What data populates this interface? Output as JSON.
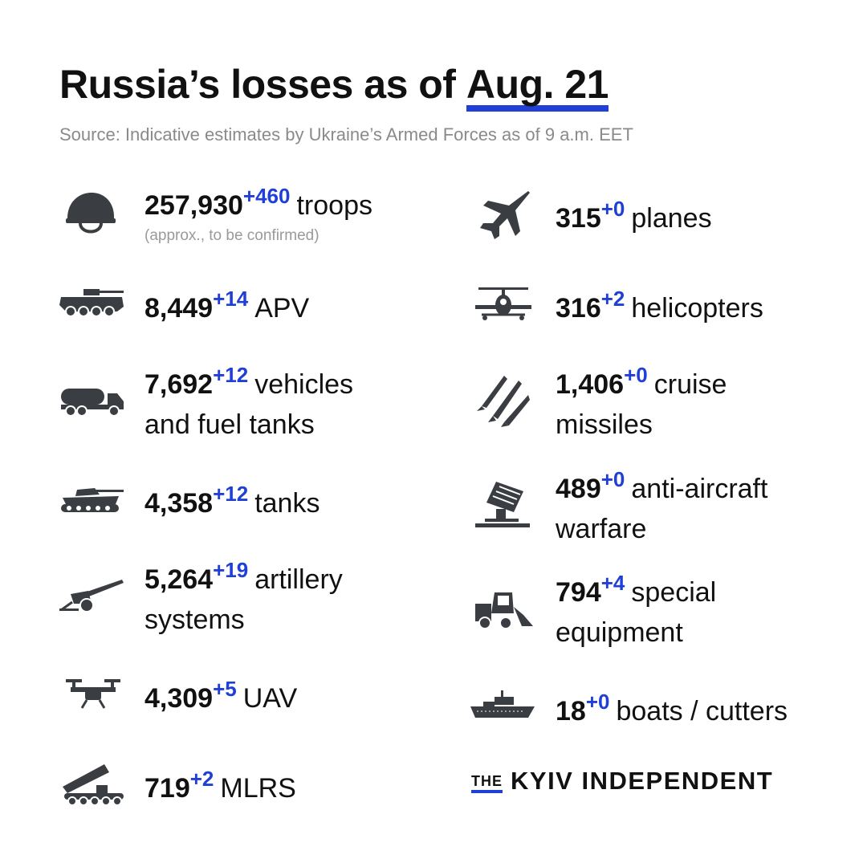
{
  "header": {
    "title_main": "Russia’s losses as of",
    "title_date": "Aug. 21",
    "source": "Source: Indicative estimates by Ukraine’s Armed Forces as of 9 a.m. EET"
  },
  "left": [
    {
      "value": "257,930",
      "delta": "+460",
      "label": "troops",
      "note": "(approx., to be confirmed)",
      "icon": "helmet-icon"
    },
    {
      "value": "8,449",
      "delta": "+14",
      "label": "APV",
      "icon": "apv-icon"
    },
    {
      "value": "7,692",
      "delta": "+12",
      "label": "vehicles",
      "label2": "and fuel tanks",
      "icon": "fuel-truck-icon"
    },
    {
      "value": "4,358",
      "delta": "+12",
      "label": "tanks",
      "icon": "tank-icon"
    },
    {
      "value": "5,264",
      "delta": "+19",
      "label": "artillery",
      "label2": "systems",
      "icon": "artillery-icon"
    },
    {
      "value": "4,309",
      "delta": "+5",
      "label": "UAV",
      "icon": "drone-icon"
    },
    {
      "value": "719",
      "delta": "+2",
      "label": "MLRS",
      "icon": "mlrs-icon"
    }
  ],
  "right": [
    {
      "value": "315",
      "delta": "+0",
      "label": "planes",
      "icon": "plane-icon"
    },
    {
      "value": "316",
      "delta": "+2",
      "label": "helicopters",
      "icon": "helicopter-icon"
    },
    {
      "value": "1,406",
      "delta": "+0",
      "label": "cruise",
      "label2": "missiles",
      "icon": "missiles-icon"
    },
    {
      "value": "489",
      "delta": "+0",
      "label": "anti-aircraft",
      "label2": "warfare",
      "icon": "anti-aircraft-icon"
    },
    {
      "value": "794",
      "delta": "+4",
      "label": "special",
      "label2": "equipment",
      "icon": "loader-icon"
    },
    {
      "value": "18",
      "delta": "+0",
      "label": "boats / cutters",
      "icon": "boat-icon"
    }
  ],
  "brand": {
    "the": "THE",
    "name": "KYIV INDEPENDENT"
  },
  "colors": {
    "accent": "#1f3fd6",
    "icon": "#3a3d42",
    "text": "#111111",
    "muted": "#8a8a8a"
  }
}
